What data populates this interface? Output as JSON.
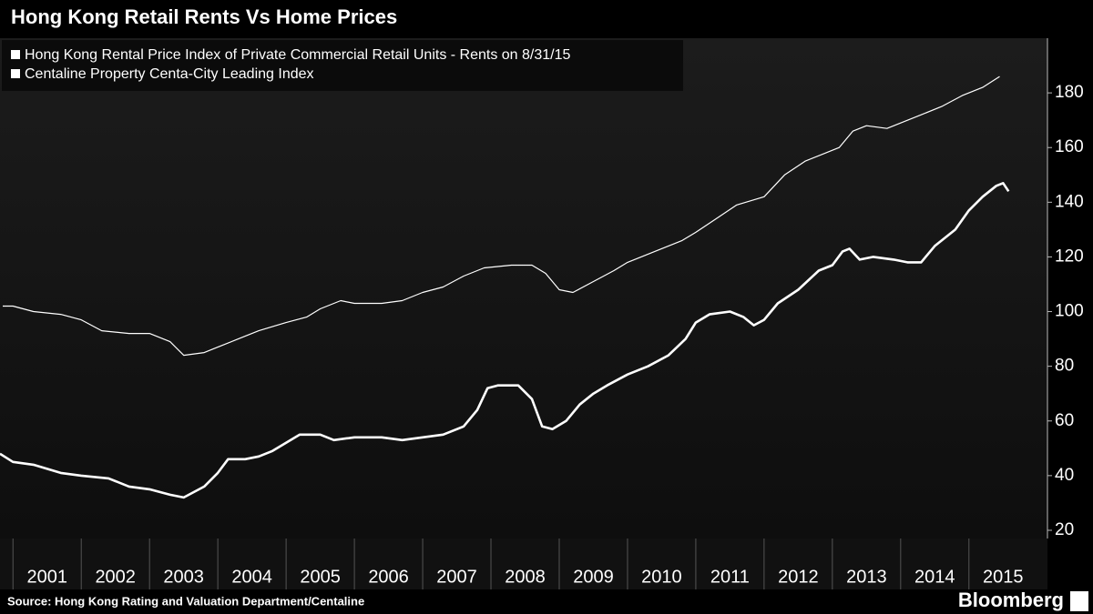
{
  "chart_data": {
    "type": "line",
    "title": "Hong Kong Retail Rents Vs Home Prices",
    "source": "Source: Hong Kong Rating and Valuation Department/Centaline",
    "brand": "Bloomberg",
    "xlim": [
      2000.81,
      2016.15
    ],
    "xticks": [
      2001,
      2002,
      2003,
      2004,
      2005,
      2006,
      2007,
      2008,
      2009,
      2010,
      2011,
      2012,
      2013,
      2014,
      2015
    ],
    "ylim": [
      17,
      200
    ],
    "yticks": [
      20,
      40,
      60,
      80,
      100,
      120,
      140,
      160,
      180
    ],
    "series": [
      {
        "name": "Hong Kong Rental Price Index of Private Commercial Retail Units - Rents  on 8/31/15",
        "color": "#ffffff",
        "x": [
          2000.81,
          2001.0,
          2001.3,
          2001.7,
          2002.0,
          2002.4,
          2002.7,
          2003.0,
          2003.3,
          2003.5,
          2003.8,
          2004.0,
          2004.15,
          2004.4,
          2004.6,
          2004.8,
          2005.0,
          2005.2,
          2005.5,
          2005.7,
          2006.0,
          2006.4,
          2006.7,
          2007.0,
          2007.3,
          2007.6,
          2007.8,
          2007.95,
          2008.1,
          2008.4,
          2008.6,
          2008.75,
          2008.9,
          2009.1,
          2009.3,
          2009.5,
          2009.7,
          2010.0,
          2010.3,
          2010.6,
          2010.85,
          2011.0,
          2011.2,
          2011.5,
          2011.7,
          2011.85,
          2012.0,
          2012.2,
          2012.5,
          2012.8,
          2013.0,
          2013.15,
          2013.25,
          2013.4,
          2013.6,
          2013.9,
          2014.1,
          2014.3,
          2014.5,
          2014.8,
          2015.0,
          2015.2,
          2015.4,
          2015.5,
          2015.58
        ],
        "values": [
          48,
          45,
          44,
          41,
          40,
          39,
          36,
          35,
          33,
          32,
          36,
          41,
          46,
          46,
          47,
          49,
          52,
          55,
          55,
          53,
          54,
          54,
          53,
          54,
          55,
          58,
          64,
          72,
          73,
          73,
          68,
          58,
          57,
          60,
          66,
          70,
          73,
          77,
          80,
          84,
          90,
          96,
          99,
          100,
          98,
          95,
          97,
          103,
          108,
          115,
          117,
          122,
          123,
          119,
          120,
          119,
          118,
          118,
          124,
          130,
          137,
          142,
          146,
          147,
          144
        ]
      },
      {
        "name": "Centaline Property Centa-City Leading Index",
        "color": "#ffffff",
        "x": [
          2000.85,
          2001.0,
          2001.3,
          2001.7,
          2002.0,
          2002.3,
          2002.7,
          2003.0,
          2003.3,
          2003.5,
          2003.8,
          2004.0,
          2004.3,
          2004.6,
          2005.0,
          2005.3,
          2005.5,
          2005.8,
          2006.0,
          2006.4,
          2006.7,
          2007.0,
          2007.3,
          2007.6,
          2007.9,
          2008.3,
          2008.6,
          2008.8,
          2009.0,
          2009.2,
          2009.5,
          2009.8,
          2010.0,
          2010.4,
          2010.8,
          2011.0,
          2011.3,
          2011.6,
          2012.0,
          2012.3,
          2012.6,
          2012.9,
          2013.1,
          2013.3,
          2013.5,
          2013.8,
          2014.0,
          2014.3,
          2014.6,
          2014.9,
          2015.2,
          2015.45
        ],
        "values": [
          102,
          102,
          100,
          99,
          97,
          93,
          92,
          92,
          89,
          84,
          85,
          87,
          90,
          93,
          96,
          98,
          101,
          104,
          103,
          103,
          104,
          107,
          109,
          113,
          116,
          117,
          117,
          114,
          108,
          107,
          111,
          115,
          118,
          122,
          126,
          129,
          134,
          139,
          142,
          150,
          155,
          158,
          160,
          166,
          168,
          167,
          169,
          172,
          175,
          179,
          182,
          186
        ]
      }
    ]
  }
}
